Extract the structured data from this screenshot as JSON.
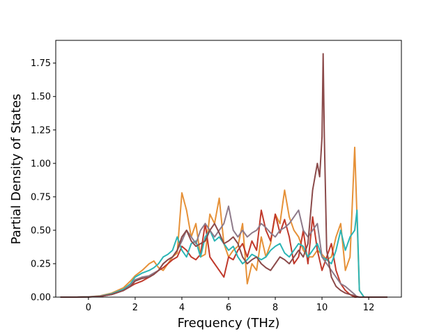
{
  "chart_data": {
    "type": "line",
    "xlabel": "Frequency (THz)",
    "ylabel": "Partial Density of States",
    "xlim": [
      -1.4,
      13.4
    ],
    "ylim": [
      0,
      1.92
    ],
    "xticks": [
      0,
      2,
      4,
      6,
      8,
      10,
      12
    ],
    "yticks": [
      0.0,
      0.25,
      0.5,
      0.75,
      1.0,
      1.25,
      1.5,
      1.75
    ],
    "xtick_labels": [
      "0",
      "2",
      "4",
      "6",
      "8",
      "10",
      "12"
    ],
    "ytick_labels": [
      "0.00",
      "0.25",
      "0.50",
      "0.75",
      "1.00",
      "1.25",
      "1.50",
      "1.75"
    ],
    "grid": false,
    "series": [
      {
        "color": "#e69138",
        "x": [
          -1.2,
          -0.5,
          0,
          0.5,
          1,
          1.5,
          1.8,
          2,
          2.3,
          2.6,
          2.8,
          3,
          3.2,
          3.4,
          3.6,
          3.8,
          4,
          4.2,
          4.4,
          4.6,
          4.8,
          5,
          5.2,
          5.4,
          5.6,
          5.8,
          6,
          6.2,
          6.4,
          6.6,
          6.8,
          7,
          7.2,
          7.4,
          7.6,
          7.8,
          8,
          8.2,
          8.4,
          8.6,
          8.8,
          9,
          9.2,
          9.4,
          9.6,
          9.8,
          10,
          10.2,
          10.4,
          10.6,
          10.8,
          11,
          11.2,
          11.4,
          11.5,
          11.6,
          11.8,
          12.8
        ],
        "y": [
          0,
          0,
          0.002,
          0.01,
          0.03,
          0.07,
          0.12,
          0.16,
          0.2,
          0.25,
          0.27,
          0.22,
          0.2,
          0.25,
          0.3,
          0.33,
          0.78,
          0.65,
          0.45,
          0.55,
          0.3,
          0.32,
          0.62,
          0.55,
          0.74,
          0.4,
          0.3,
          0.35,
          0.38,
          0.55,
          0.1,
          0.25,
          0.2,
          0.45,
          0.3,
          0.4,
          0.62,
          0.55,
          0.8,
          0.6,
          0.5,
          0.45,
          0.35,
          0.3,
          0.3,
          0.35,
          0.32,
          0.28,
          0.3,
          0.45,
          0.55,
          0.2,
          0.3,
          1.12,
          0.6,
          0.05,
          0,
          0
        ]
      },
      {
        "color": "#c0392b",
        "x": [
          -1.2,
          -0.5,
          0,
          0.5,
          1,
          1.5,
          1.8,
          2,
          2.3,
          2.6,
          2.8,
          3,
          3.2,
          3.4,
          3.6,
          3.8,
          4,
          4.2,
          4.4,
          4.6,
          4.8,
          5,
          5.2,
          5.4,
          5.6,
          5.8,
          6,
          6.2,
          6.4,
          6.6,
          6.8,
          7,
          7.2,
          7.4,
          7.6,
          7.8,
          8,
          8.2,
          8.4,
          8.6,
          8.8,
          9,
          9.2,
          9.4,
          9.6,
          9.8,
          10,
          10.2,
          10.4,
          10.6,
          10.8,
          11,
          11.2,
          11.4,
          11.5,
          11.6,
          11.8,
          12.8
        ],
        "y": [
          0,
          0,
          0.001,
          0.005,
          0.02,
          0.05,
          0.08,
          0.1,
          0.12,
          0.15,
          0.17,
          0.2,
          0.22,
          0.25,
          0.28,
          0.3,
          0.38,
          0.35,
          0.3,
          0.28,
          0.32,
          0.55,
          0.3,
          0.25,
          0.2,
          0.15,
          0.3,
          0.28,
          0.35,
          0.4,
          0.3,
          0.42,
          0.35,
          0.65,
          0.5,
          0.42,
          0.62,
          0.48,
          0.58,
          0.45,
          0.25,
          0.3,
          0.5,
          0.25,
          0.6,
          0.35,
          0.2,
          0.3,
          0.4,
          0.2,
          0.1,
          0.05,
          0.02,
          0,
          0,
          0,
          0,
          0
        ]
      },
      {
        "color": "#2bb5b5",
        "x": [
          -1.2,
          -0.5,
          0,
          0.5,
          1,
          1.5,
          1.8,
          2,
          2.3,
          2.6,
          2.8,
          3,
          3.2,
          3.4,
          3.6,
          3.8,
          4,
          4.2,
          4.4,
          4.6,
          4.8,
          5,
          5.2,
          5.4,
          5.6,
          5.8,
          6,
          6.2,
          6.4,
          6.6,
          6.8,
          7,
          7.2,
          7.4,
          7.6,
          7.8,
          8,
          8.2,
          8.4,
          8.6,
          8.8,
          9,
          9.2,
          9.4,
          9.6,
          9.8,
          10,
          10.2,
          10.4,
          10.6,
          10.8,
          11,
          11.2,
          11.4,
          11.5,
          11.6,
          11.8,
          12.8
        ],
        "y": [
          0,
          0,
          0.002,
          0.008,
          0.025,
          0.06,
          0.1,
          0.15,
          0.18,
          0.2,
          0.22,
          0.25,
          0.3,
          0.32,
          0.35,
          0.45,
          0.35,
          0.3,
          0.4,
          0.42,
          0.3,
          0.45,
          0.5,
          0.42,
          0.45,
          0.4,
          0.35,
          0.38,
          0.3,
          0.25,
          0.28,
          0.32,
          0.3,
          0.28,
          0.3,
          0.35,
          0.38,
          0.4,
          0.33,
          0.3,
          0.35,
          0.4,
          0.38,
          0.3,
          0.35,
          0.4,
          0.3,
          0.28,
          0.25,
          0.35,
          0.5,
          0.35,
          0.45,
          0.5,
          0.65,
          0.05,
          0,
          0
        ]
      },
      {
        "color": "#8e7a8a",
        "x": [
          -1.2,
          -0.5,
          0,
          0.5,
          1,
          1.5,
          1.8,
          2,
          2.3,
          2.6,
          2.8,
          3,
          3.2,
          3.4,
          3.6,
          3.8,
          4,
          4.2,
          4.4,
          4.6,
          4.8,
          5,
          5.2,
          5.4,
          5.6,
          5.8,
          6,
          6.2,
          6.4,
          6.6,
          6.8,
          7,
          7.2,
          7.4,
          7.6,
          7.8,
          8,
          8.2,
          8.4,
          8.6,
          8.8,
          9,
          9.2,
          9.4,
          9.6,
          9.8,
          10,
          10.2,
          10.4,
          10.6,
          10.8,
          11,
          11.2,
          11.4,
          11.5,
          11.6,
          11.8,
          12.8
        ],
        "y": [
          0,
          0,
          0.001,
          0.006,
          0.02,
          0.05,
          0.09,
          0.13,
          0.15,
          0.16,
          0.18,
          0.2,
          0.25,
          0.28,
          0.3,
          0.35,
          0.42,
          0.5,
          0.45,
          0.4,
          0.5,
          0.55,
          0.5,
          0.45,
          0.5,
          0.55,
          0.68,
          0.5,
          0.45,
          0.5,
          0.45,
          0.48,
          0.5,
          0.55,
          0.52,
          0.48,
          0.45,
          0.5,
          0.52,
          0.55,
          0.6,
          0.65,
          0.5,
          0.45,
          0.5,
          0.55,
          0.3,
          0.25,
          0.2,
          0.15,
          0.1,
          0.08,
          0.05,
          0.02,
          0,
          0,
          0,
          0
        ]
      },
      {
        "color": "#8b4a4a",
        "x": [
          -1.2,
          -0.5,
          0,
          0.5,
          1,
          1.5,
          1.8,
          2,
          2.3,
          2.6,
          2.8,
          3,
          3.2,
          3.4,
          3.6,
          3.8,
          4,
          4.2,
          4.4,
          4.6,
          4.8,
          5,
          5.2,
          5.4,
          5.6,
          5.8,
          6,
          6.2,
          6.4,
          6.6,
          6.8,
          7,
          7.2,
          7.4,
          7.6,
          7.8,
          8,
          8.2,
          8.4,
          8.6,
          8.8,
          9,
          9.2,
          9.4,
          9.6,
          9.8,
          9.9,
          10,
          10.05,
          10.1,
          10.2,
          10.4,
          10.6,
          10.8,
          11,
          11.2,
          11.4,
          11.6,
          11.8,
          12.8
        ],
        "y": [
          0,
          0,
          0.001,
          0.005,
          0.02,
          0.05,
          0.08,
          0.12,
          0.14,
          0.15,
          0.17,
          0.2,
          0.25,
          0.28,
          0.3,
          0.35,
          0.45,
          0.5,
          0.42,
          0.38,
          0.4,
          0.42,
          0.5,
          0.55,
          0.48,
          0.4,
          0.42,
          0.45,
          0.4,
          0.3,
          0.25,
          0.28,
          0.3,
          0.25,
          0.22,
          0.2,
          0.25,
          0.3,
          0.28,
          0.25,
          0.3,
          0.35,
          0.3,
          0.4,
          0.8,
          1.0,
          0.9,
          1.2,
          1.82,
          1.2,
          0.35,
          0.15,
          0.08,
          0.05,
          0.03,
          0.02,
          0.01,
          0,
          0,
          0
        ]
      }
    ]
  }
}
